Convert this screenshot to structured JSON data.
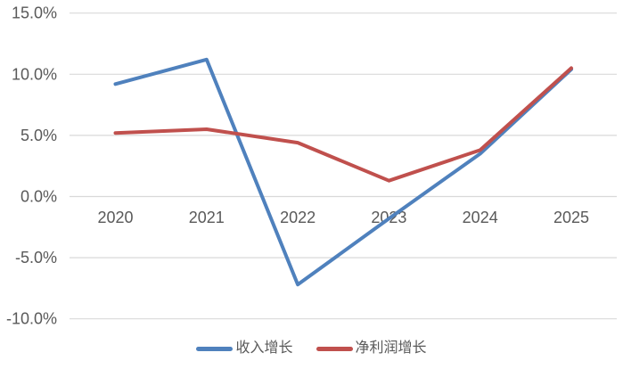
{
  "chart_data": {
    "type": "line",
    "title": "",
    "xlabel": "",
    "ylabel": "",
    "categories": [
      "2020",
      "2021",
      "2022",
      "2023",
      "2024",
      "2025"
    ],
    "series": [
      {
        "name": "收入增长",
        "color": "#4F81BD",
        "values": [
          9.2,
          11.2,
          -7.2,
          -1.8,
          3.5,
          10.4
        ]
      },
      {
        "name": "净利润增长",
        "color": "#C0504D",
        "values": [
          5.2,
          5.5,
          4.4,
          1.3,
          3.8,
          10.5
        ]
      }
    ],
    "y_axis": {
      "tick_labels": [
        "15.0%",
        "10.0%",
        "5.0%",
        "0.0%",
        "-5.0%",
        "-10.0%"
      ],
      "tick_values": [
        15,
        10,
        5,
        0,
        -5,
        -10
      ],
      "min": -10,
      "max": 15,
      "unit": "%"
    },
    "x_axis": {
      "tick_labels": [
        "2020",
        "2021",
        "2022",
        "2023",
        "2024",
        "2025"
      ]
    },
    "legend": {
      "position": "bottom",
      "entries": [
        "收入增长",
        "净利润增长"
      ]
    },
    "grid": true,
    "colors": {
      "gridline": "#D9D9D9",
      "axis_label": "#595959",
      "background": "#FFFFFF"
    }
  }
}
